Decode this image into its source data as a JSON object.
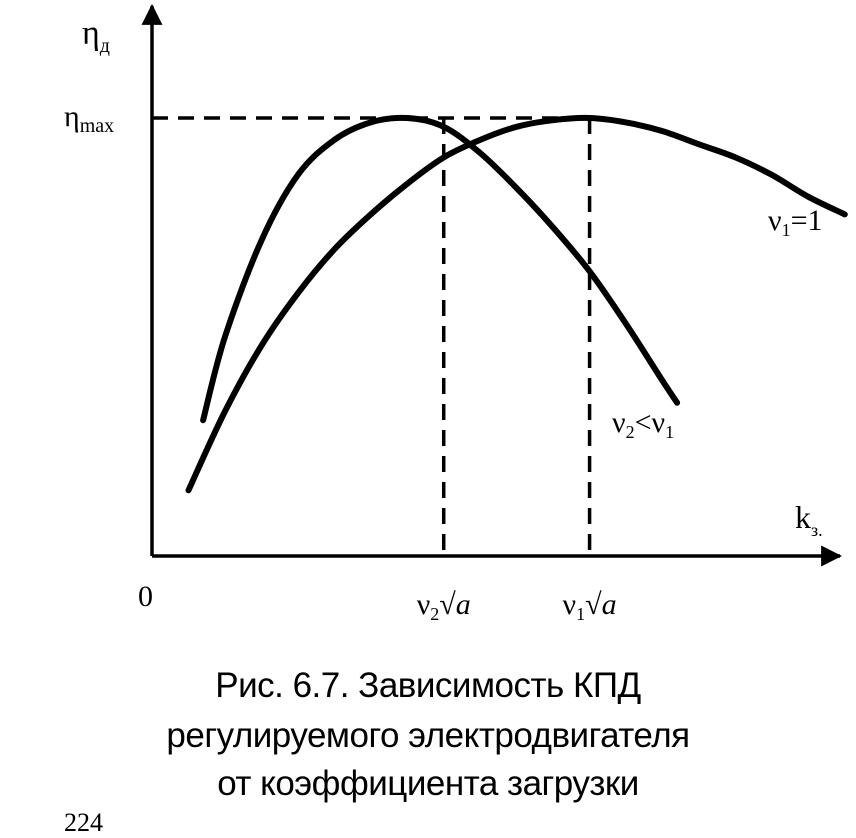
{
  "chart_data": {
    "type": "line",
    "title": "",
    "y_axis_label": "η",
    "y_axis_label_sub": "д",
    "x_axis_label": "k",
    "x_axis_label_sub": "з.",
    "origin_label": "0",
    "y_tick": {
      "label": "η",
      "sub": "max",
      "value": 1.0
    },
    "x_ticks": [
      {
        "prefix": "ν",
        "sub": "2",
        "suffix": "√a",
        "value": 0.4
      },
      {
        "prefix": "ν",
        "sub": "1",
        "suffix": "√a",
        "value": 0.6
      }
    ],
    "series": [
      {
        "name_main": "ν",
        "name_sub": "1",
        "name_tail": "=1",
        "x": [
          0.05,
          0.1,
          0.15,
          0.2,
          0.25,
          0.3,
          0.35,
          0.4,
          0.45,
          0.5,
          0.55,
          0.6,
          0.65,
          0.7,
          0.75,
          0.8,
          0.85,
          0.9,
          0.95
        ],
        "y": [
          0.15,
          0.33,
          0.48,
          0.6,
          0.7,
          0.78,
          0.85,
          0.91,
          0.95,
          0.98,
          0.995,
          1.0,
          0.99,
          0.97,
          0.94,
          0.91,
          0.87,
          0.82,
          0.78
        ]
      },
      {
        "name_main": "ν",
        "name_sub": "2",
        "name_tail": "<ν",
        "name_tail_sub": "1",
        "x": [
          0.07,
          0.1,
          0.15,
          0.2,
          0.25,
          0.3,
          0.35,
          0.4,
          0.45,
          0.5,
          0.55,
          0.6,
          0.65,
          0.7,
          0.72
        ],
        "y": [
          0.31,
          0.5,
          0.72,
          0.87,
          0.95,
          0.99,
          1.0,
          0.98,
          0.92,
          0.84,
          0.75,
          0.65,
          0.53,
          0.4,
          0.35
        ]
      }
    ],
    "xlim": [
      0,
      1.0
    ],
    "ylim": [
      0,
      1.0
    ],
    "grid": false,
    "legend": "inline labels at curve ends"
  },
  "caption": {
    "line1": "Рис. 6.7. Зависимость КПД",
    "line2": "регулируемого электродвигателя",
    "line3": "от коэффициента загрузки"
  },
  "page_number": "224"
}
